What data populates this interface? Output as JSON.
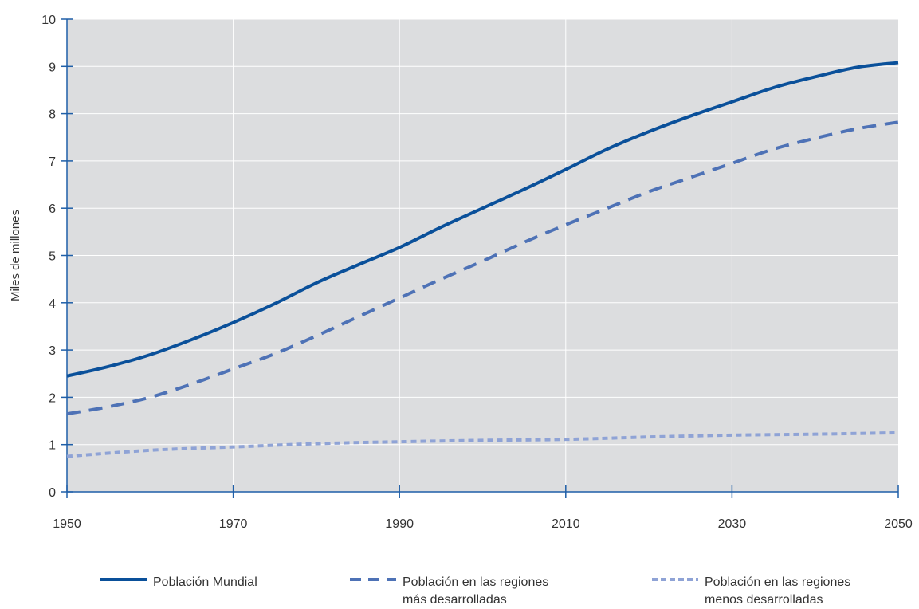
{
  "chart_data": {
    "type": "line",
    "ylabel": "Miles de millones",
    "xlabel": "",
    "xlim": [
      1950,
      2050
    ],
    "ylim": [
      0,
      10
    ],
    "x_ticks": [
      1950,
      1970,
      1990,
      2010,
      2030,
      2050
    ],
    "y_ticks": [
      0,
      1,
      2,
      3,
      4,
      5,
      6,
      7,
      8,
      9,
      10
    ],
    "grid": true,
    "legend_position": "bottom",
    "series": [
      {
        "name": "Población Mundial",
        "color": "#0a509a",
        "style": "solid",
        "x": [
          1950,
          1955,
          1960,
          1965,
          1970,
          1975,
          1980,
          1985,
          1990,
          1995,
          2000,
          2005,
          2010,
          2015,
          2020,
          2025,
          2030,
          2035,
          2040,
          2045,
          2050
        ],
        "values": [
          2.45,
          2.65,
          2.9,
          3.22,
          3.58,
          3.98,
          4.42,
          4.8,
          5.17,
          5.6,
          6.0,
          6.4,
          6.82,
          7.25,
          7.62,
          7.95,
          8.25,
          8.55,
          8.78,
          8.98,
          9.08
        ]
      },
      {
        "name": "Población en las regiones\nmás desarrolladas",
        "color": "#4e72b6",
        "style": "dashed",
        "x": [
          1950,
          1955,
          1960,
          1965,
          1970,
          1975,
          1980,
          1985,
          1990,
          1995,
          2000,
          2005,
          2010,
          2015,
          2020,
          2025,
          2030,
          2035,
          2040,
          2045,
          2050
        ],
        "values": [
          1.65,
          1.8,
          2.0,
          2.28,
          2.6,
          2.92,
          3.3,
          3.7,
          4.1,
          4.5,
          4.88,
          5.28,
          5.65,
          6.0,
          6.35,
          6.65,
          6.95,
          7.25,
          7.48,
          7.68,
          7.82
        ]
      },
      {
        "name": "Población en las regiones\nmenos desarrolladas",
        "color": "#8fa3d6",
        "style": "dotted",
        "x": [
          1950,
          1960,
          1970,
          1980,
          1990,
          2000,
          2010,
          2020,
          2030,
          2040,
          2050
        ],
        "values": [
          0.75,
          0.88,
          0.95,
          1.02,
          1.06,
          1.09,
          1.11,
          1.16,
          1.2,
          1.22,
          1.25
        ]
      }
    ]
  }
}
